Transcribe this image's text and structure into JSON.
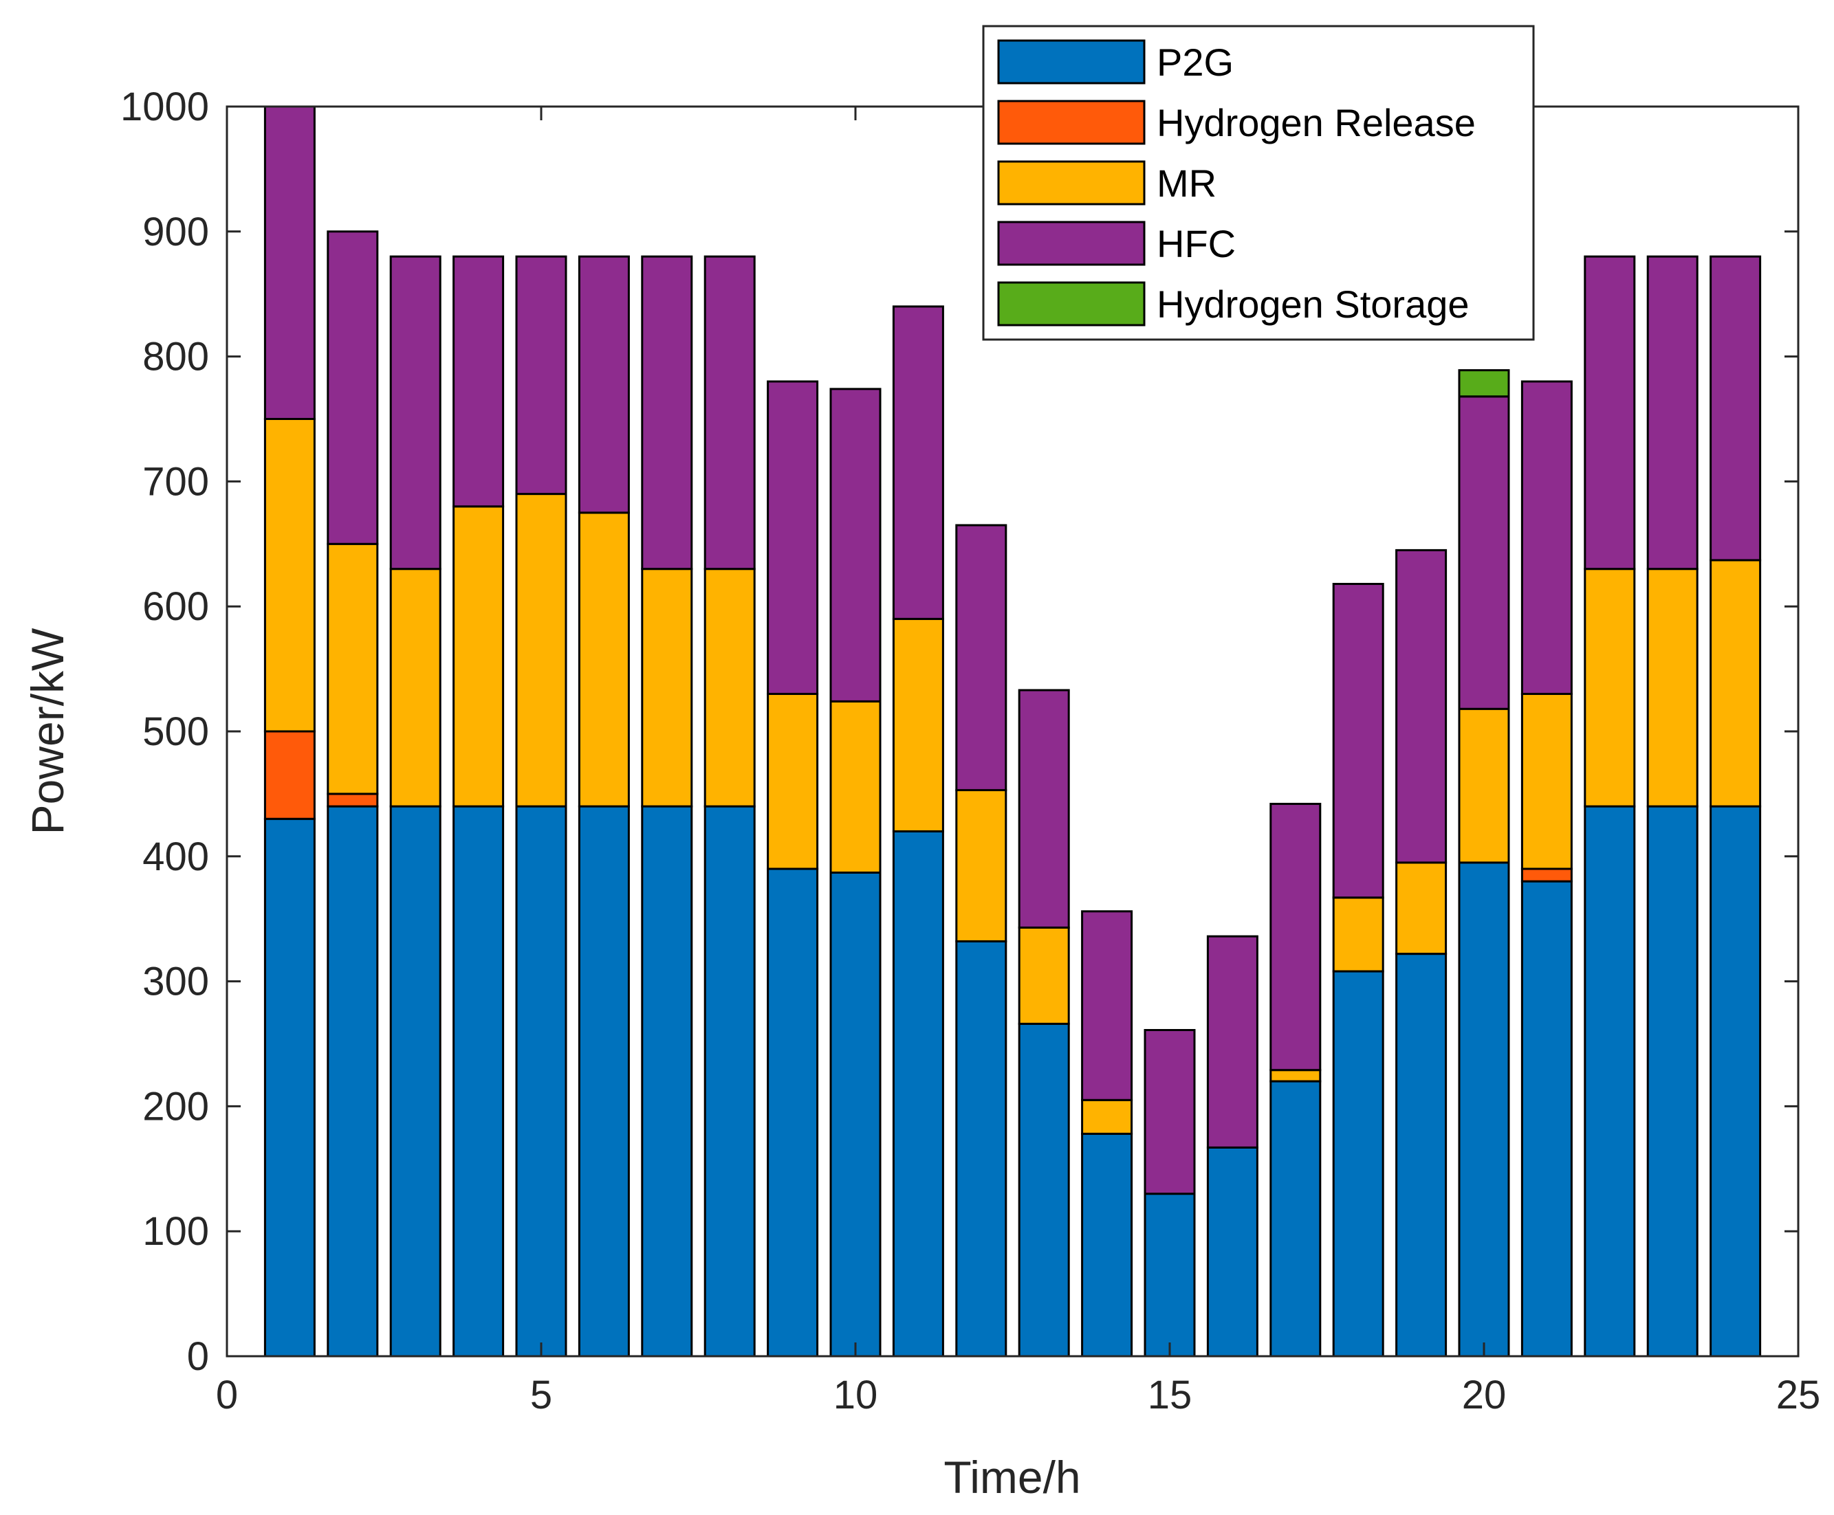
{
  "chart_data": {
    "type": "bar",
    "stacked": true,
    "title": "",
    "xlabel": "Time/h",
    "ylabel": "Power/kW",
    "xlim": [
      0,
      25
    ],
    "ylim": [
      0,
      1000
    ],
    "xticks": [
      0,
      5,
      10,
      15,
      20,
      25
    ],
    "yticks": [
      0,
      100,
      200,
      300,
      400,
      500,
      600,
      700,
      800,
      900,
      1000
    ],
    "legend_position": "top-right",
    "categories": [
      1,
      2,
      3,
      4,
      5,
      6,
      7,
      8,
      9,
      10,
      11,
      12,
      13,
      14,
      15,
      16,
      17,
      18,
      19,
      20,
      21,
      22,
      23,
      24
    ],
    "series": [
      {
        "name": "P2G",
        "color": "#0072BD",
        "values": [
          430,
          440,
          440,
          440,
          440,
          440,
          440,
          440,
          390,
          387,
          420,
          332,
          266,
          178,
          130,
          167,
          220,
          308,
          322,
          395,
          380,
          440,
          440,
          440
        ]
      },
      {
        "name": "Hydrogen Release",
        "color": "#FF5A0A",
        "values": [
          70,
          10,
          0,
          0,
          0,
          0,
          0,
          0,
          0,
          0,
          0,
          0,
          0,
          0,
          0,
          0,
          0,
          0,
          0,
          0,
          10,
          0,
          0,
          0
        ]
      },
      {
        "name": "MR",
        "color": "#FFB300",
        "values": [
          250,
          200,
          190,
          240,
          250,
          235,
          190,
          190,
          140,
          137,
          170,
          121,
          77,
          27,
          0,
          0,
          9,
          59,
          73,
          123,
          140,
          190,
          190,
          197
        ]
      },
      {
        "name": "HFC",
        "color": "#8E2C8E",
        "values": [
          250,
          250,
          250,
          200,
          190,
          205,
          250,
          250,
          250,
          250,
          250,
          212,
          190,
          151,
          131,
          169,
          213,
          251,
          250,
          250,
          250,
          250,
          250,
          243
        ]
      },
      {
        "name": "Hydrogen Storage",
        "color": "#58AC1A",
        "values": [
          0,
          0,
          0,
          0,
          0,
          0,
          0,
          0,
          0,
          0,
          0,
          0,
          0,
          0,
          0,
          0,
          0,
          0,
          0,
          21,
          0,
          0,
          0,
          0
        ]
      }
    ]
  }
}
